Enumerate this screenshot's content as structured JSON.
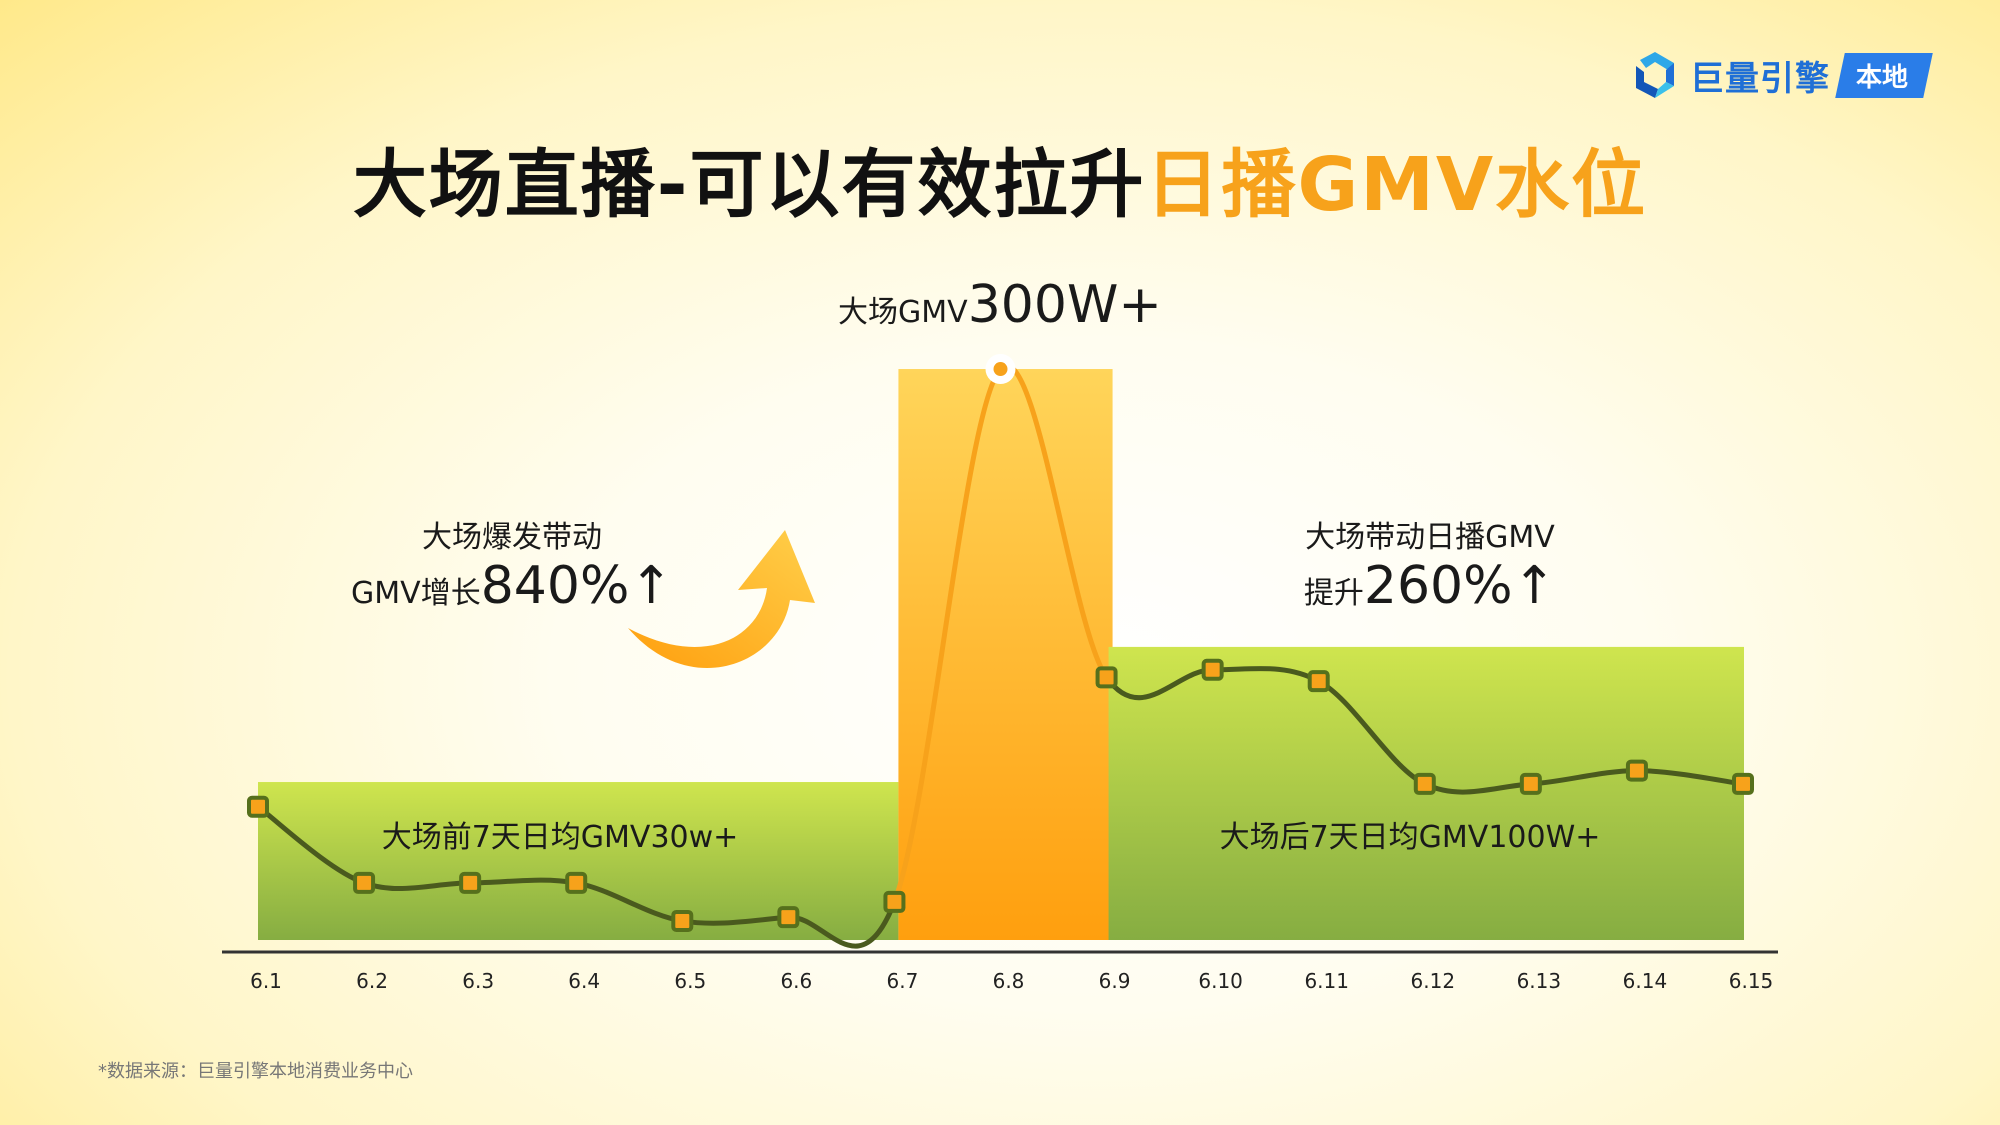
{
  "brand": {
    "name": "巨量引擎",
    "badge": "本地"
  },
  "title": {
    "main": "大场直播-可以有效拉升",
    "highlight": "日播GMV水位"
  },
  "annotations": {
    "peak_prefix": "大场GMV",
    "peak_value": "300W+",
    "growth_line1": "大场爆发带动",
    "growth_prefix": "GMV增长",
    "growth_value": "840%↑",
    "after_line1": "大场带动日播GMV",
    "after_prefix": "提升",
    "after_value": "260%↑",
    "before_avg": "大场前7天日均GMV30w+",
    "after_avg": "大场后7天日均GMV100W+"
  },
  "source": "*数据来源：巨量引擎本地消费业务中心",
  "chart_data": {
    "type": "line",
    "categories": [
      "6.1",
      "6.2",
      "6.3",
      "6.4",
      "6.5",
      "6.6",
      "6.7",
      "6.8",
      "6.9",
      "6.10",
      "6.11",
      "6.12",
      "6.13",
      "6.14",
      "6.15"
    ],
    "series": [
      {
        "values": [
          70,
          30,
          30,
          30,
          10,
          12,
          20,
          300,
          138,
          142,
          136,
          82,
          82,
          89,
          82
        ]
      }
    ],
    "bands": [
      {
        "label": "大场前7天日均GMV30w+",
        "from": "6.1",
        "to": "6.7",
        "value": 83
      },
      {
        "label": "大场GMV300W+",
        "from": "6.7",
        "to": "6.9",
        "value": 300
      },
      {
        "label": "大场后7天日均GMV100W+",
        "from": "6.9",
        "to": "6.15",
        "value": 154
      }
    ],
    "ylim": [
      0,
      310
    ],
    "colors": {
      "line": "#4a5a1e",
      "marker": "#f7a21b",
      "marker_edge": "#56701c",
      "peak_line": "#f7a21b",
      "band_green": "#b7d84a",
      "band_orange": "#ffb12a"
    }
  }
}
